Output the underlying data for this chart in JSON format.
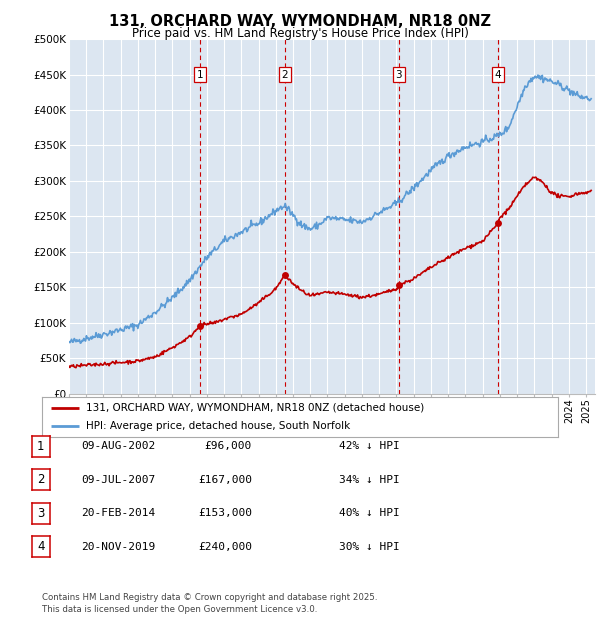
{
  "title": "131, ORCHARD WAY, WYMONDHAM, NR18 0NZ",
  "subtitle": "Price paid vs. HM Land Registry's House Price Index (HPI)",
  "ylim": [
    0,
    500000
  ],
  "yticks": [
    0,
    50000,
    100000,
    150000,
    200000,
    250000,
    300000,
    350000,
    400000,
    450000,
    500000
  ],
  "xlim_start": 1995.0,
  "xlim_end": 2025.5,
  "background_color": "#ffffff",
  "plot_bg_color": "#dce6f1",
  "grid_color": "#ffffff",
  "hpi_color": "#5b9bd5",
  "price_color": "#c00000",
  "vline_color": "#cc0000",
  "transactions": [
    {
      "num": 1,
      "date_x": 2002.6,
      "price": 96000,
      "label": "09-AUG-2002",
      "amount": "£96,000",
      "pct": "42% ↓ HPI"
    },
    {
      "num": 2,
      "date_x": 2007.52,
      "price": 167000,
      "label": "09-JUL-2007",
      "amount": "£167,000",
      "pct": "34% ↓ HPI"
    },
    {
      "num": 3,
      "date_x": 2014.13,
      "price": 153000,
      "label": "20-FEB-2014",
      "amount": "£153,000",
      "pct": "40% ↓ HPI"
    },
    {
      "num": 4,
      "date_x": 2019.89,
      "price": 240000,
      "label": "20-NOV-2019",
      "amount": "£240,000",
      "pct": "30% ↓ HPI"
    }
  ],
  "legend_label_price": "131, ORCHARD WAY, WYMONDHAM, NR18 0NZ (detached house)",
  "legend_label_hpi": "HPI: Average price, detached house, South Norfolk",
  "footer": "Contains HM Land Registry data © Crown copyright and database right 2025.\nThis data is licensed under the Open Government Licence v3.0.",
  "hpi_anchors": [
    [
      1995.0,
      72000
    ],
    [
      1996.0,
      78000
    ],
    [
      1997.0,
      84000
    ],
    [
      1998.0,
      90000
    ],
    [
      1999.0,
      97000
    ],
    [
      2000.0,
      115000
    ],
    [
      2001.0,
      135000
    ],
    [
      2002.0,
      160000
    ],
    [
      2003.0,
      192000
    ],
    [
      2004.0,
      215000
    ],
    [
      2005.0,
      228000
    ],
    [
      2006.0,
      240000
    ],
    [
      2007.0,
      258000
    ],
    [
      2007.5,
      265000
    ],
    [
      2008.0,
      252000
    ],
    [
      2008.5,
      238000
    ],
    [
      2009.0,
      232000
    ],
    [
      2009.5,
      238000
    ],
    [
      2010.0,
      248000
    ],
    [
      2011.0,
      245000
    ],
    [
      2012.0,
      242000
    ],
    [
      2013.0,
      255000
    ],
    [
      2014.0,
      268000
    ],
    [
      2015.0,
      290000
    ],
    [
      2016.0,
      315000
    ],
    [
      2017.0,
      335000
    ],
    [
      2018.0,
      348000
    ],
    [
      2019.0,
      355000
    ],
    [
      2020.0,
      365000
    ],
    [
      2020.5,
      375000
    ],
    [
      2021.0,
      405000
    ],
    [
      2021.5,
      435000
    ],
    [
      2022.0,
      448000
    ],
    [
      2022.5,
      445000
    ],
    [
      2023.0,
      440000
    ],
    [
      2023.5,
      435000
    ],
    [
      2024.0,
      428000
    ],
    [
      2024.5,
      420000
    ],
    [
      2025.3,
      415000
    ]
  ],
  "price_anchors": [
    [
      1995.0,
      38000
    ],
    [
      1996.0,
      40000
    ],
    [
      1997.0,
      42000
    ],
    [
      1998.0,
      44000
    ],
    [
      1999.0,
      46000
    ],
    [
      2000.0,
      52000
    ],
    [
      2001.0,
      65000
    ],
    [
      2002.0,
      80000
    ],
    [
      2002.6,
      96000
    ],
    [
      2003.0,
      98000
    ],
    [
      2003.5,
      100000
    ],
    [
      2004.0,
      105000
    ],
    [
      2005.0,
      112000
    ],
    [
      2006.0,
      128000
    ],
    [
      2007.0,
      148000
    ],
    [
      2007.52,
      167000
    ],
    [
      2008.0,
      155000
    ],
    [
      2008.5,
      145000
    ],
    [
      2009.0,
      138000
    ],
    [
      2009.5,
      140000
    ],
    [
      2010.0,
      143000
    ],
    [
      2011.0,
      140000
    ],
    [
      2012.0,
      136000
    ],
    [
      2013.0,
      140000
    ],
    [
      2014.0,
      148000
    ],
    [
      2014.13,
      153000
    ],
    [
      2015.0,
      162000
    ],
    [
      2016.0,
      178000
    ],
    [
      2017.0,
      192000
    ],
    [
      2018.0,
      205000
    ],
    [
      2019.0,
      215000
    ],
    [
      2019.89,
      240000
    ],
    [
      2020.0,
      248000
    ],
    [
      2020.5,
      260000
    ],
    [
      2021.0,
      278000
    ],
    [
      2021.5,
      295000
    ],
    [
      2022.0,
      305000
    ],
    [
      2022.5,
      298000
    ],
    [
      2023.0,
      283000
    ],
    [
      2023.5,
      278000
    ],
    [
      2024.0,
      278000
    ],
    [
      2024.5,
      282000
    ],
    [
      2025.3,
      285000
    ]
  ]
}
